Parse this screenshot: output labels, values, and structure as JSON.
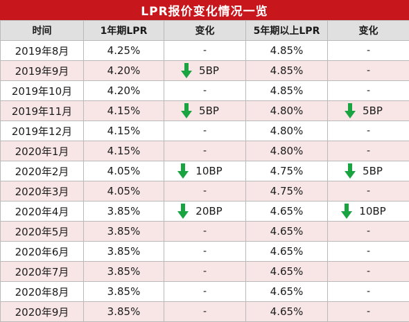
{
  "title": "LPR报价变化情况一览",
  "headers": [
    "时间",
    "1年期LPR",
    "变化",
    "5年期以上LPR",
    "变化"
  ],
  "rows": [
    {
      "date": "2019年8月",
      "lpr1": "4.25%",
      "chg1": "-",
      "lpr5": "4.85%",
      "chg5": "-"
    },
    {
      "date": "2019年9月",
      "lpr1": "4.20%",
      "chg1": "5BP",
      "lpr5": "4.85%",
      "chg5": "-"
    },
    {
      "date": "2019年10月",
      "lpr1": "4.20%",
      "chg1": "-",
      "lpr5": "4.85%",
      "chg5": "-"
    },
    {
      "date": "2019年11月",
      "lpr1": "4.15%",
      "chg1": "5BP",
      "lpr5": "4.80%",
      "chg5": "5BP"
    },
    {
      "date": "2019年12月",
      "lpr1": "4.15%",
      "chg1": "-",
      "lpr5": "4.80%",
      "chg5": "-"
    },
    {
      "date": "2020年1月",
      "lpr1": "4.15%",
      "chg1": "-",
      "lpr5": "4.80%",
      "chg5": "-"
    },
    {
      "date": "2020年2月",
      "lpr1": "4.05%",
      "chg1": "10BP",
      "lpr5": "4.75%",
      "chg5": "5BP"
    },
    {
      "date": "2020年3月",
      "lpr1": "4.05%",
      "chg1": "-",
      "lpr5": "4.75%",
      "chg5": "-"
    },
    {
      "date": "2020年4月",
      "lpr1": "3.85%",
      "chg1": "20BP",
      "lpr5": "4.65%",
      "chg5": "10BP"
    },
    {
      "date": "2020年5月",
      "lpr1": "3.85%",
      "chg1": "-",
      "lpr5": "4.65%",
      "chg5": "-"
    },
    {
      "date": "2020年6月",
      "lpr1": "3.85%",
      "chg1": "-",
      "lpr5": "4.65%",
      "chg5": "-"
    },
    {
      "date": "2020年7月",
      "lpr1": "3.85%",
      "chg1": "-",
      "lpr5": "4.65%",
      "chg5": "-"
    },
    {
      "date": "2020年8月",
      "lpr1": "3.85%",
      "chg1": "-",
      "lpr5": "4.65%",
      "chg5": "-"
    },
    {
      "date": "2020年9月",
      "lpr1": "3.85%",
      "chg1": "-",
      "lpr5": "4.65%",
      "chg5": "-"
    }
  ],
  "icons": {
    "decrease": "down-arrow-icon"
  },
  "colors": {
    "title_bg": "#c8161d",
    "arrow": "#1aa341",
    "stripe": "#f8e6e6",
    "header_bg": "#e0e0e0"
  }
}
